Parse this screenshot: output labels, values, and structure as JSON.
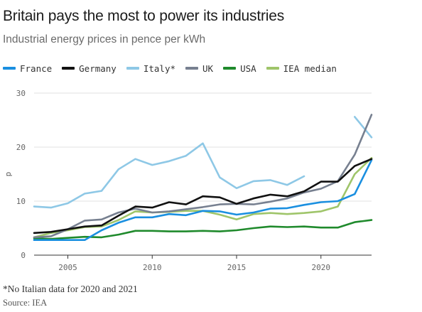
{
  "title": "Britain pays the most to power its industries",
  "subtitle": "Industrial energy prices in pence per kWh",
  "footnote": "*No Italian data for 2020 and 2021",
  "source": "Source: IEA",
  "chart_data": {
    "type": "line",
    "title": "Britain pays the most to power its industries",
    "subtitle": "Industrial energy prices in pence per kWh",
    "xlabel": "",
    "ylabel": "p",
    "xlim": [
      2003,
      2023
    ],
    "ylim": [
      0,
      30
    ],
    "x_ticks": [
      2005,
      2010,
      2015,
      2020
    ],
    "y_ticks": [
      0,
      10,
      20,
      30
    ],
    "grid": "horizontal",
    "legend": "top",
    "series": [
      {
        "name": "France",
        "color": "#1a8fe0",
        "points": [
          [
            2003,
            2.8
          ],
          [
            2004,
            2.8
          ],
          [
            2005,
            2.8
          ],
          [
            2006,
            2.8
          ],
          [
            2007,
            4.6
          ],
          [
            2008,
            6.0
          ],
          [
            2009,
            7.0
          ],
          [
            2010,
            7.0
          ],
          [
            2011,
            7.6
          ],
          [
            2012,
            7.4
          ],
          [
            2013,
            8.2
          ],
          [
            2014,
            8.1
          ],
          [
            2015,
            7.5
          ],
          [
            2016,
            7.9
          ],
          [
            2017,
            8.6
          ],
          [
            2018,
            8.7
          ],
          [
            2019,
            9.3
          ],
          [
            2020,
            9.8
          ],
          [
            2021,
            10.0
          ],
          [
            2022,
            11.3
          ],
          [
            2023,
            17.6
          ]
        ]
      },
      {
        "name": "Germany",
        "color": "#111111",
        "points": [
          [
            2003,
            4.1
          ],
          [
            2004,
            4.3
          ],
          [
            2005,
            4.8
          ],
          [
            2006,
            5.3
          ],
          [
            2007,
            5.5
          ],
          [
            2008,
            7.3
          ],
          [
            2009,
            9.0
          ],
          [
            2010,
            8.8
          ],
          [
            2011,
            9.8
          ],
          [
            2012,
            9.4
          ],
          [
            2013,
            10.9
          ],
          [
            2014,
            10.7
          ],
          [
            2015,
            9.5
          ],
          [
            2016,
            10.5
          ],
          [
            2017,
            11.2
          ],
          [
            2018,
            10.9
          ],
          [
            2019,
            11.8
          ],
          [
            2020,
            13.6
          ],
          [
            2021,
            13.6
          ],
          [
            2022,
            16.5
          ],
          [
            2023,
            17.8
          ]
        ]
      },
      {
        "name": "Italy*",
        "color": "#8ec8e6",
        "segments": [
          [
            [
              2003,
              9.0
            ],
            [
              2004,
              8.8
            ],
            [
              2005,
              9.6
            ],
            [
              2006,
              11.4
            ],
            [
              2007,
              11.9
            ],
            [
              2008,
              15.9
            ],
            [
              2009,
              17.8
            ],
            [
              2010,
              16.7
            ],
            [
              2011,
              17.4
            ],
            [
              2012,
              18.4
            ],
            [
              2013,
              20.7
            ],
            [
              2014,
              14.4
            ],
            [
              2015,
              12.4
            ],
            [
              2016,
              13.7
            ],
            [
              2017,
              13.9
            ],
            [
              2018,
              13.0
            ],
            [
              2019,
              14.6
            ]
          ],
          [
            [
              2022,
              25.6
            ],
            [
              2023,
              21.8
            ]
          ]
        ]
      },
      {
        "name": "UK",
        "color": "#778090",
        "points": [
          [
            2003,
            3.3
          ],
          [
            2004,
            3.5
          ],
          [
            2005,
            4.8
          ],
          [
            2006,
            6.4
          ],
          [
            2007,
            6.6
          ],
          [
            2008,
            7.9
          ],
          [
            2009,
            8.6
          ],
          [
            2010,
            7.9
          ],
          [
            2011,
            8.1
          ],
          [
            2012,
            8.5
          ],
          [
            2013,
            8.9
          ],
          [
            2014,
            9.4
          ],
          [
            2015,
            9.5
          ],
          [
            2016,
            9.4
          ],
          [
            2017,
            9.9
          ],
          [
            2018,
            10.5
          ],
          [
            2019,
            11.6
          ],
          [
            2020,
            12.3
          ],
          [
            2021,
            13.7
          ],
          [
            2022,
            18.6
          ],
          [
            2023,
            26.0
          ]
        ]
      },
      {
        "name": "USA",
        "color": "#1f8a2c",
        "points": [
          [
            2003,
            3.1
          ],
          [
            2004,
            3.0
          ],
          [
            2005,
            3.2
          ],
          [
            2006,
            3.4
          ],
          [
            2007,
            3.3
          ],
          [
            2008,
            3.8
          ],
          [
            2009,
            4.5
          ],
          [
            2010,
            4.5
          ],
          [
            2011,
            4.4
          ],
          [
            2012,
            4.4
          ],
          [
            2013,
            4.5
          ],
          [
            2014,
            4.4
          ],
          [
            2015,
            4.6
          ],
          [
            2016,
            5.0
          ],
          [
            2017,
            5.3
          ],
          [
            2018,
            5.2
          ],
          [
            2019,
            5.3
          ],
          [
            2020,
            5.1
          ],
          [
            2021,
            5.1
          ],
          [
            2022,
            6.1
          ],
          [
            2023,
            6.5
          ]
        ]
      },
      {
        "name": "IEA median",
        "color": "#9fc56a",
        "points": [
          [
            2003,
            3.3
          ],
          [
            2004,
            4.1
          ],
          [
            2005,
            4.6
          ],
          [
            2006,
            5.2
          ],
          [
            2007,
            5.3
          ],
          [
            2008,
            6.5
          ],
          [
            2009,
            8.1
          ],
          [
            2010,
            7.9
          ],
          [
            2011,
            8.0
          ],
          [
            2012,
            8.2
          ],
          [
            2013,
            8.2
          ],
          [
            2014,
            7.5
          ],
          [
            2015,
            6.6
          ],
          [
            2016,
            7.6
          ],
          [
            2017,
            7.8
          ],
          [
            2018,
            7.6
          ],
          [
            2019,
            7.8
          ],
          [
            2020,
            8.1
          ],
          [
            2021,
            9.0
          ],
          [
            2022,
            15.0
          ],
          [
            2023,
            18.0
          ]
        ]
      }
    ]
  }
}
